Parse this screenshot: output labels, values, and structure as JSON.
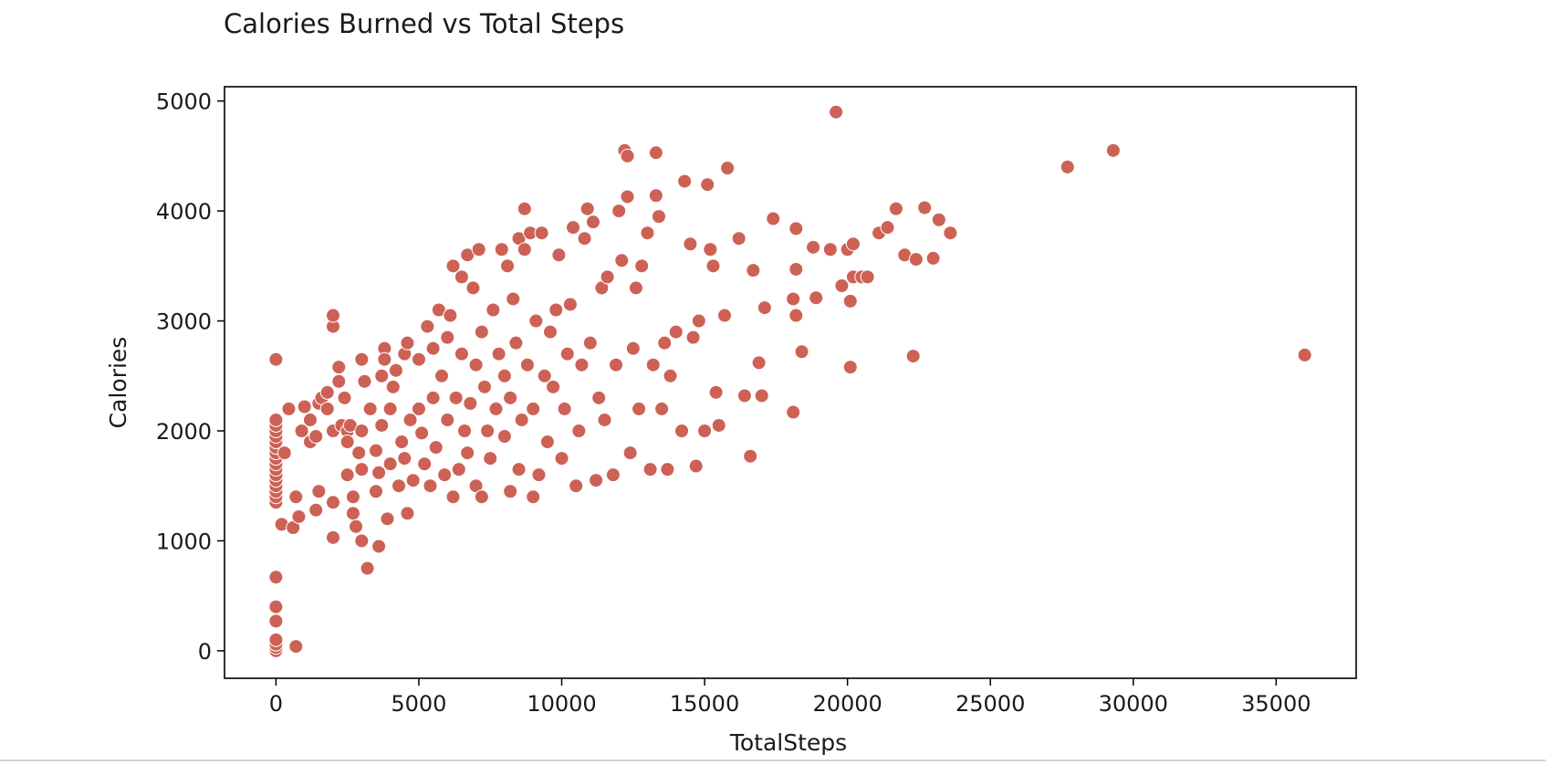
{
  "chart_data": {
    "type": "scatter",
    "title": "Calories Burned vs Total Steps",
    "xlabel": "TotalSteps",
    "ylabel": "Calories",
    "xlim": [
      -1800,
      37800
    ],
    "ylim": [
      -250,
      5130
    ],
    "xticks": [
      0,
      5000,
      10000,
      15000,
      20000,
      25000,
      30000,
      35000
    ],
    "yticks": [
      0,
      1000,
      2000,
      3000,
      4000,
      5000
    ],
    "grid": false,
    "legend": "none",
    "marker_color": "#cd6155",
    "marker_edge": "#ffffff",
    "series": [
      {
        "points": [
          [
            0,
            0
          ],
          [
            0,
            30
          ],
          [
            0,
            60
          ],
          [
            0,
            100
          ],
          [
            0,
            270
          ],
          [
            0,
            400
          ],
          [
            0,
            670
          ],
          [
            700,
            40
          ],
          [
            0,
            1350
          ],
          [
            0,
            1400
          ],
          [
            0,
            1450
          ],
          [
            0,
            1500
          ],
          [
            0,
            1550
          ],
          [
            0,
            1600
          ],
          [
            0,
            1650
          ],
          [
            0,
            1700
          ],
          [
            0,
            1750
          ],
          [
            0,
            1800
          ],
          [
            0,
            1850
          ],
          [
            0,
            1900
          ],
          [
            0,
            1950
          ],
          [
            0,
            2000
          ],
          [
            0,
            2050
          ],
          [
            0,
            2100
          ],
          [
            0,
            2650
          ],
          [
            200,
            1150
          ],
          [
            300,
            1800
          ],
          [
            450,
            2200
          ],
          [
            600,
            1120
          ],
          [
            700,
            1400
          ],
          [
            800,
            1220
          ],
          [
            900,
            2000
          ],
          [
            1000,
            2220
          ],
          [
            1200,
            1900
          ],
          [
            1200,
            2100
          ],
          [
            1400,
            1950
          ],
          [
            1400,
            1280
          ],
          [
            1500,
            2250
          ],
          [
            1500,
            1450
          ],
          [
            1600,
            2300
          ],
          [
            1800,
            2200
          ],
          [
            1800,
            2350
          ],
          [
            2000,
            2000
          ],
          [
            2000,
            1350
          ],
          [
            2000,
            1030
          ],
          [
            2000,
            2950
          ],
          [
            2000,
            3050
          ],
          [
            2200,
            2580
          ],
          [
            2200,
            2450
          ],
          [
            2300,
            2050
          ],
          [
            2400,
            2300
          ],
          [
            2500,
            2000
          ],
          [
            2500,
            1900
          ],
          [
            2500,
            1600
          ],
          [
            2600,
            2050
          ],
          [
            2700,
            1400
          ],
          [
            2700,
            1250
          ],
          [
            2800,
            1130
          ],
          [
            2900,
            1800
          ],
          [
            3000,
            2650
          ],
          [
            3000,
            2000
          ],
          [
            3000,
            1650
          ],
          [
            3000,
            1000
          ],
          [
            3100,
            2450
          ],
          [
            3200,
            750
          ],
          [
            3300,
            2200
          ],
          [
            3500,
            1820
          ],
          [
            3500,
            1450
          ],
          [
            3600,
            1620
          ],
          [
            3600,
            950
          ],
          [
            3700,
            2050
          ],
          [
            3700,
            2500
          ],
          [
            3800,
            2750
          ],
          [
            3800,
            2650
          ],
          [
            3900,
            1200
          ],
          [
            4000,
            1700
          ],
          [
            4000,
            2200
          ],
          [
            4100,
            2400
          ],
          [
            4200,
            2550
          ],
          [
            4300,
            1500
          ],
          [
            4400,
            1900
          ],
          [
            4500,
            1750
          ],
          [
            4500,
            2700
          ],
          [
            4600,
            1250
          ],
          [
            4600,
            2800
          ],
          [
            4700,
            2100
          ],
          [
            4800,
            1550
          ],
          [
            5000,
            2200
          ],
          [
            5000,
            2650
          ],
          [
            5100,
            1980
          ],
          [
            5200,
            1700
          ],
          [
            5300,
            2950
          ],
          [
            5400,
            1500
          ],
          [
            5500,
            2300
          ],
          [
            5500,
            2750
          ],
          [
            5600,
            1850
          ],
          [
            5700,
            3100
          ],
          [
            5800,
            2500
          ],
          [
            5900,
            1600
          ],
          [
            6000,
            2100
          ],
          [
            6000,
            2850
          ],
          [
            6100,
            3050
          ],
          [
            6200,
            1400
          ],
          [
            6200,
            3500
          ],
          [
            6300,
            2300
          ],
          [
            6400,
            1650
          ],
          [
            6500,
            3400
          ],
          [
            6500,
            2700
          ],
          [
            6600,
            2000
          ],
          [
            6700,
            1800
          ],
          [
            6700,
            3600
          ],
          [
            6800,
            2250
          ],
          [
            6900,
            3300
          ],
          [
            7000,
            2600
          ],
          [
            7000,
            1500
          ],
          [
            7100,
            3650
          ],
          [
            7200,
            2900
          ],
          [
            7200,
            1400
          ],
          [
            7300,
            2400
          ],
          [
            7400,
            2000
          ],
          [
            7500,
            1750
          ],
          [
            7600,
            3100
          ],
          [
            7700,
            2200
          ],
          [
            7800,
            2700
          ],
          [
            7900,
            3650
          ],
          [
            8000,
            2500
          ],
          [
            8000,
            1950
          ],
          [
            8100,
            3500
          ],
          [
            8200,
            2300
          ],
          [
            8200,
            1450
          ],
          [
            8300,
            3200
          ],
          [
            8400,
            2800
          ],
          [
            8500,
            3750
          ],
          [
            8500,
            1650
          ],
          [
            8600,
            2100
          ],
          [
            8700,
            4020
          ],
          [
            8700,
            3650
          ],
          [
            8800,
            2600
          ],
          [
            8900,
            3800
          ],
          [
            9000,
            1400
          ],
          [
            9000,
            2200
          ],
          [
            9100,
            3000
          ],
          [
            9200,
            1600
          ],
          [
            9300,
            3800
          ],
          [
            9400,
            2500
          ],
          [
            9500,
            1900
          ],
          [
            9600,
            2900
          ],
          [
            9700,
            2400
          ],
          [
            9800,
            3100
          ],
          [
            9900,
            3600
          ],
          [
            10000,
            1750
          ],
          [
            10100,
            2200
          ],
          [
            10200,
            2700
          ],
          [
            10300,
            3150
          ],
          [
            10400,
            3850
          ],
          [
            10500,
            1500
          ],
          [
            10600,
            2000
          ],
          [
            10700,
            2600
          ],
          [
            10800,
            3750
          ],
          [
            10900,
            4020
          ],
          [
            11000,
            2800
          ],
          [
            11100,
            3900
          ],
          [
            11200,
            1550
          ],
          [
            11300,
            2300
          ],
          [
            11400,
            3300
          ],
          [
            11500,
            2100
          ],
          [
            11600,
            3400
          ],
          [
            11800,
            1600
          ],
          [
            11900,
            2600
          ],
          [
            12000,
            4000
          ],
          [
            12100,
            3550
          ],
          [
            12200,
            4550
          ],
          [
            12300,
            4500
          ],
          [
            12300,
            4130
          ],
          [
            12400,
            1800
          ],
          [
            12500,
            2750
          ],
          [
            12600,
            3300
          ],
          [
            12700,
            2200
          ],
          [
            12800,
            3500
          ],
          [
            13000,
            3800
          ],
          [
            13100,
            1650
          ],
          [
            13200,
            2600
          ],
          [
            13300,
            4530
          ],
          [
            13300,
            4140
          ],
          [
            13400,
            3950
          ],
          [
            13500,
            2200
          ],
          [
            13600,
            2800
          ],
          [
            13700,
            1650
          ],
          [
            13800,
            2500
          ],
          [
            14000,
            2900
          ],
          [
            14200,
            2000
          ],
          [
            14300,
            4270
          ],
          [
            14500,
            3700
          ],
          [
            14600,
            2850
          ],
          [
            14700,
            1680
          ],
          [
            14800,
            3000
          ],
          [
            15000,
            2000
          ],
          [
            15100,
            4240
          ],
          [
            15200,
            3650
          ],
          [
            15300,
            3500
          ],
          [
            15400,
            2350
          ],
          [
            15500,
            2050
          ],
          [
            15700,
            3050
          ],
          [
            15800,
            4390
          ],
          [
            16200,
            3750
          ],
          [
            16400,
            2320
          ],
          [
            16600,
            1770
          ],
          [
            16700,
            3460
          ],
          [
            16900,
            2620
          ],
          [
            17000,
            2320
          ],
          [
            17100,
            3120
          ],
          [
            17400,
            3930
          ],
          [
            18100,
            3200
          ],
          [
            18100,
            2170
          ],
          [
            18200,
            3840
          ],
          [
            18200,
            3470
          ],
          [
            18200,
            3050
          ],
          [
            18400,
            2720
          ],
          [
            18800,
            3670
          ],
          [
            18900,
            3210
          ],
          [
            19400,
            3650
          ],
          [
            19600,
            4900
          ],
          [
            19800,
            3320
          ],
          [
            20000,
            3650
          ],
          [
            20100,
            3180
          ],
          [
            20100,
            2580
          ],
          [
            20200,
            3700
          ],
          [
            20200,
            3400
          ],
          [
            20500,
            3400
          ],
          [
            20700,
            3400
          ],
          [
            21100,
            3800
          ],
          [
            21400,
            3850
          ],
          [
            21700,
            4020
          ],
          [
            22000,
            3600
          ],
          [
            22300,
            2680
          ],
          [
            22400,
            3560
          ],
          [
            22700,
            4030
          ],
          [
            23000,
            3570
          ],
          [
            23200,
            3920
          ],
          [
            23600,
            3800
          ],
          [
            27700,
            4400
          ],
          [
            29300,
            4550
          ],
          [
            36000,
            2690
          ]
        ]
      }
    ]
  }
}
